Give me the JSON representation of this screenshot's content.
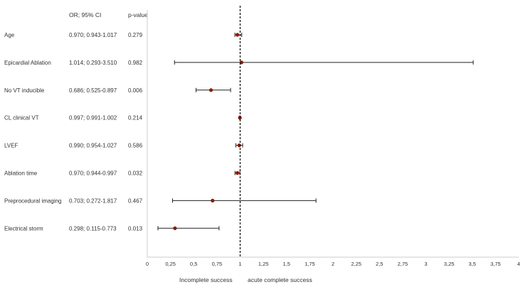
{
  "chart_data": {
    "type": "forest",
    "headers": {
      "or_ci": "OR; 95% CI",
      "p_value": "p-value"
    },
    "rows": [
      {
        "label": "Age",
        "ci_text": "0.970; 0.943-1.017",
        "p": "0.279",
        "or": 0.97,
        "lo": 0.943,
        "hi": 1.017
      },
      {
        "label": "Epicardial Ablation",
        "ci_text": "1.014; 0.293-3.510",
        "p": "0.982",
        "or": 1.014,
        "lo": 0.293,
        "hi": 3.51
      },
      {
        "label": "No VT inducible",
        "ci_text": "0.686; 0.525-0.897",
        "p": "0.006",
        "or": 0.686,
        "lo": 0.525,
        "hi": 0.897
      },
      {
        "label": "CL clinical VT",
        "ci_text": "0.997; 0.991-1.002",
        "p": "0.214",
        "or": 0.997,
        "lo": 0.991,
        "hi": 1.002
      },
      {
        "label": "LVEF",
        "ci_text": "0.990; 0.954-1.027",
        "p": "0.586",
        "or": 0.99,
        "lo": 0.954,
        "hi": 1.027
      },
      {
        "label": "Ablation time",
        "ci_text": "0.970; 0.944-0.997",
        "p": "0.032",
        "or": 0.97,
        "lo": 0.944,
        "hi": 0.997
      },
      {
        "label": "Preprocedural imaging",
        "ci_text": "0.703; 0.272-1.817",
        "p": "0.467",
        "or": 0.703,
        "lo": 0.272,
        "hi": 1.817
      },
      {
        "label": "Electrical storm",
        "ci_text": "0.298; 0.115-0.773",
        "p": "0.013",
        "or": 0.298,
        "lo": 0.115,
        "hi": 0.773
      }
    ],
    "x_ticks": [
      0,
      0.25,
      0.5,
      0.75,
      1,
      1.25,
      1.5,
      1.75,
      2,
      2.25,
      2.5,
      2.75,
      3,
      3.25,
      3.5,
      3.75,
      4
    ],
    "x_tick_labels": [
      "0",
      "0,25",
      "0,5",
      "0,75",
      "1",
      "1,25",
      "1,5",
      "1,75",
      "2",
      "2,25",
      "2,5",
      "2,75",
      "3",
      "3,25",
      "3,5",
      "3,75",
      "4"
    ],
    "xlim": [
      0,
      4
    ],
    "reference_line": 1,
    "footer_left": "Incomplete success",
    "footer_right": "acute complete success",
    "colors": {
      "marker": "#8b1a00",
      "whisker": "#222222",
      "axis": "#cccccc",
      "ref": "#111111"
    }
  }
}
